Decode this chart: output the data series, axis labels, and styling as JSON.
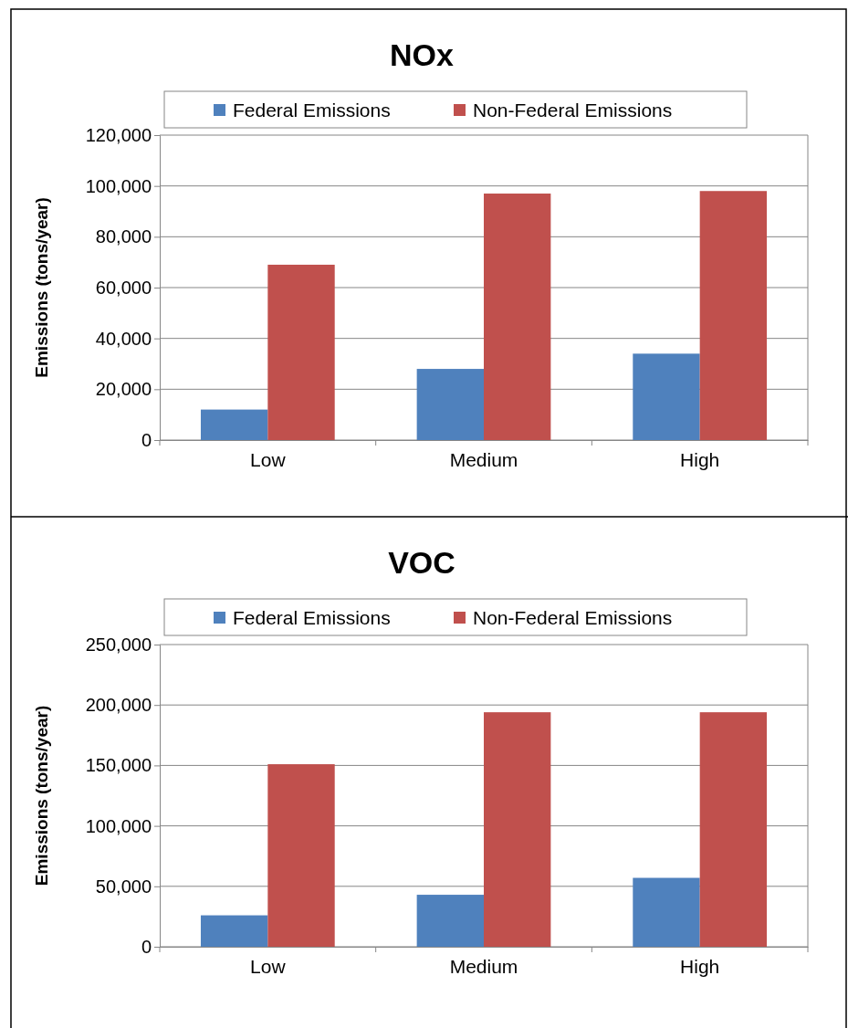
{
  "chart_data": [
    {
      "type": "bar",
      "title": "NOx",
      "ylabel": "Emissions (tons/year)",
      "categories": [
        "Low",
        "Medium",
        "High"
      ],
      "series": [
        {
          "name": "Federal Emissions",
          "color": "#4f81bd",
          "values": [
            12000,
            28000,
            34000
          ]
        },
        {
          "name": "Non-Federal Emissions",
          "color": "#c0504d",
          "values": [
            69000,
            97000,
            98000
          ]
        }
      ],
      "ylim": [
        0,
        120000
      ],
      "yticks": [
        {
          "value": 0,
          "label": "0"
        },
        {
          "value": 20000,
          "label": "20,000"
        },
        {
          "value": 40000,
          "label": "40,000"
        },
        {
          "value": 60000,
          "label": "60,000"
        },
        {
          "value": 80000,
          "label": "80,000"
        },
        {
          "value": 100000,
          "label": "100,000"
        },
        {
          "value": 120000,
          "label": "120,000"
        }
      ],
      "grid": "y",
      "legend": "top"
    },
    {
      "type": "bar",
      "title": "VOC",
      "ylabel": "Emissions (tons/year)",
      "categories": [
        "Low",
        "Medium",
        "High"
      ],
      "series": [
        {
          "name": "Federal Emissions",
          "color": "#4f81bd",
          "values": [
            26000,
            43000,
            57000
          ]
        },
        {
          "name": "Non-Federal Emissions",
          "color": "#c0504d",
          "values": [
            151000,
            194000,
            194000
          ]
        }
      ],
      "ylim": [
        0,
        250000
      ],
      "yticks": [
        {
          "value": 0,
          "label": "0"
        },
        {
          "value": 50000,
          "label": "50,000"
        },
        {
          "value": 100000,
          "label": "100,000"
        },
        {
          "value": 150000,
          "label": "150,000"
        },
        {
          "value": 200000,
          "label": "200,000"
        },
        {
          "value": 250000,
          "label": "250,000"
        }
      ],
      "grid": "y",
      "legend": "top"
    }
  ]
}
